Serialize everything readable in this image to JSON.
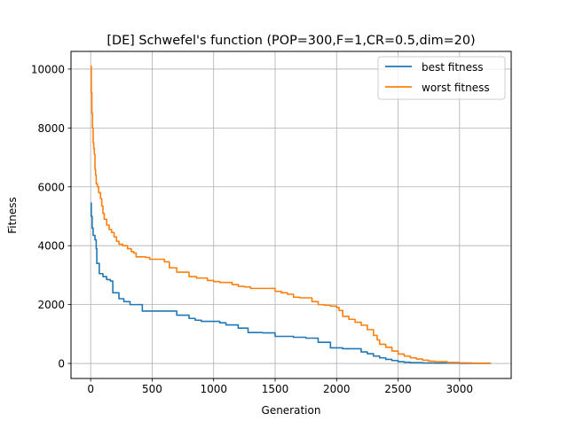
{
  "chart_data": {
    "type": "line",
    "title": "[DE] Schwefel's function (POP=300,F=1,CR=0.5,dim=20)",
    "xlabel": "Generation",
    "ylabel": "Fitness",
    "xlim": [
      -160,
      3420
    ],
    "ylim": [
      -510,
      10600
    ],
    "grid": true,
    "legend_position": "upper right",
    "x_ticks": [
      0,
      500,
      1000,
      1500,
      2000,
      2500,
      3000
    ],
    "x_tick_labels": [
      "0",
      "500",
      "1000",
      "1500",
      "2000",
      "2500",
      "3000"
    ],
    "y_ticks": [
      0,
      2000,
      4000,
      6000,
      8000,
      10000
    ],
    "y_tick_labels": [
      "0",
      "2000",
      "4000",
      "6000",
      "8000",
      "10000"
    ],
    "series": [
      {
        "name": "best fitness",
        "color": "#1f77b4",
        "points": [
          [
            0,
            5450
          ],
          [
            5,
            5000
          ],
          [
            12,
            4600
          ],
          [
            20,
            4350
          ],
          [
            35,
            4200
          ],
          [
            45,
            3900
          ],
          [
            50,
            3400
          ],
          [
            70,
            3050
          ],
          [
            100,
            2950
          ],
          [
            130,
            2850
          ],
          [
            160,
            2800
          ],
          [
            180,
            2400
          ],
          [
            230,
            2200
          ],
          [
            270,
            2100
          ],
          [
            320,
            2000
          ],
          [
            420,
            1780
          ],
          [
            700,
            1640
          ],
          [
            800,
            1530
          ],
          [
            850,
            1470
          ],
          [
            900,
            1430
          ],
          [
            1050,
            1380
          ],
          [
            1100,
            1310
          ],
          [
            1200,
            1200
          ],
          [
            1280,
            1050
          ],
          [
            1400,
            1040
          ],
          [
            1500,
            920
          ],
          [
            1650,
            890
          ],
          [
            1750,
            860
          ],
          [
            1800,
            860
          ],
          [
            1850,
            720
          ],
          [
            1930,
            720
          ],
          [
            1950,
            530
          ],
          [
            2050,
            500
          ],
          [
            2200,
            390
          ],
          [
            2250,
            330
          ],
          [
            2300,
            250
          ],
          [
            2350,
            190
          ],
          [
            2400,
            140
          ],
          [
            2450,
            100
          ],
          [
            2500,
            60
          ],
          [
            2550,
            40
          ],
          [
            2600,
            25
          ],
          [
            2700,
            15
          ],
          [
            2800,
            10
          ],
          [
            3000,
            5
          ],
          [
            3250,
            2
          ]
        ]
      },
      {
        "name": "worst fitness",
        "color": "#ff7f0e",
        "points": [
          [
            0,
            10100
          ],
          [
            5,
            9200
          ],
          [
            10,
            8500
          ],
          [
            15,
            8000
          ],
          [
            20,
            7500
          ],
          [
            25,
            7300
          ],
          [
            30,
            7100
          ],
          [
            35,
            6600
          ],
          [
            40,
            6400
          ],
          [
            45,
            6100
          ],
          [
            55,
            6000
          ],
          [
            65,
            5800
          ],
          [
            80,
            5600
          ],
          [
            90,
            5350
          ],
          [
            100,
            5100
          ],
          [
            110,
            4900
          ],
          [
            130,
            4700
          ],
          [
            150,
            4550
          ],
          [
            170,
            4450
          ],
          [
            190,
            4300
          ],
          [
            210,
            4150
          ],
          [
            230,
            4050
          ],
          [
            260,
            4000
          ],
          [
            300,
            3900
          ],
          [
            330,
            3800
          ],
          [
            350,
            3750
          ],
          [
            370,
            3620
          ],
          [
            450,
            3600
          ],
          [
            480,
            3540
          ],
          [
            600,
            3450
          ],
          [
            640,
            3250
          ],
          [
            700,
            3100
          ],
          [
            800,
            2950
          ],
          [
            860,
            2900
          ],
          [
            950,
            2820
          ],
          [
            1000,
            2780
          ],
          [
            1050,
            2750
          ],
          [
            1150,
            2680
          ],
          [
            1200,
            2620
          ],
          [
            1250,
            2600
          ],
          [
            1300,
            2550
          ],
          [
            1500,
            2450
          ],
          [
            1550,
            2400
          ],
          [
            1600,
            2350
          ],
          [
            1650,
            2250
          ],
          [
            1700,
            2230
          ],
          [
            1750,
            2230
          ],
          [
            1800,
            2100
          ],
          [
            1850,
            2000
          ],
          [
            1900,
            1980
          ],
          [
            1950,
            1950
          ],
          [
            2000,
            1900
          ],
          [
            2020,
            1800
          ],
          [
            2050,
            1600
          ],
          [
            2100,
            1500
          ],
          [
            2150,
            1400
          ],
          [
            2200,
            1300
          ],
          [
            2250,
            1150
          ],
          [
            2300,
            950
          ],
          [
            2330,
            800
          ],
          [
            2350,
            650
          ],
          [
            2400,
            550
          ],
          [
            2450,
            420
          ],
          [
            2500,
            320
          ],
          [
            2550,
            250
          ],
          [
            2600,
            190
          ],
          [
            2650,
            150
          ],
          [
            2700,
            110
          ],
          [
            2750,
            80
          ],
          [
            2800,
            60
          ],
          [
            2900,
            35
          ],
          [
            3000,
            20
          ],
          [
            3100,
            10
          ],
          [
            3250,
            5
          ]
        ]
      }
    ]
  }
}
